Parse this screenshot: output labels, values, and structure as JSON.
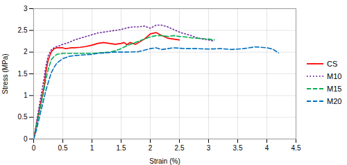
{
  "chart_data": {
    "type": "line",
    "xlabel": "Strain (%)",
    "ylabel": "Stress (MPa)",
    "xlim": [
      0,
      4.5
    ],
    "ylim": [
      0,
      3
    ],
    "xticks": [
      0,
      0.5,
      1.0,
      1.5,
      2.0,
      2.5,
      3.0,
      3.5,
      4.0,
      4.5
    ],
    "yticks": [
      0,
      0.5,
      1.0,
      1.5,
      2.0,
      2.5,
      3.0
    ],
    "grid": true,
    "legend": "right",
    "series": [
      {
        "name": "CS",
        "color": "#FF0000",
        "line_style": "solid",
        "x": [
          0,
          0.03,
          0.06,
          0.09,
          0.12,
          0.15,
          0.18,
          0.21,
          0.25,
          0.3,
          0.35,
          0.4,
          0.45,
          0.5,
          0.55,
          0.6,
          0.65,
          0.7,
          0.8,
          0.9,
          1.0,
          1.1,
          1.2,
          1.3,
          1.4,
          1.5,
          1.55,
          1.6,
          1.65,
          1.7,
          1.75,
          1.8,
          1.9,
          2.0,
          2.1,
          2.2,
          2.3,
          2.4,
          2.5
        ],
        "values": [
          0,
          0.2,
          0.42,
          0.62,
          0.82,
          1.02,
          1.22,
          1.55,
          1.82,
          2.0,
          2.08,
          2.1,
          2.1,
          2.1,
          2.08,
          2.09,
          2.1,
          2.1,
          2.11,
          2.13,
          2.16,
          2.2,
          2.22,
          2.2,
          2.18,
          2.2,
          2.22,
          2.17,
          2.22,
          2.2,
          2.18,
          2.22,
          2.3,
          2.42,
          2.45,
          2.38,
          2.32,
          2.3,
          2.28
        ]
      },
      {
        "name": "M10",
        "color": "#7030A0",
        "line_style": "dotted",
        "x": [
          0,
          0.03,
          0.06,
          0.09,
          0.12,
          0.15,
          0.18,
          0.21,
          0.25,
          0.3,
          0.35,
          0.4,
          0.45,
          0.5,
          0.6,
          0.7,
          0.8,
          0.9,
          1.0,
          1.1,
          1.2,
          1.3,
          1.4,
          1.5,
          1.6,
          1.7,
          1.8,
          1.9,
          2.0,
          2.1,
          2.2,
          2.3,
          2.4,
          2.5,
          2.6,
          2.7,
          2.8,
          2.9,
          3.0,
          3.1
        ],
        "values": [
          0,
          0.22,
          0.48,
          0.72,
          0.95,
          1.18,
          1.42,
          1.68,
          1.92,
          2.05,
          2.1,
          2.13,
          2.15,
          2.18,
          2.22,
          2.28,
          2.32,
          2.36,
          2.4,
          2.44,
          2.46,
          2.48,
          2.5,
          2.52,
          2.56,
          2.58,
          2.58,
          2.6,
          2.55,
          2.62,
          2.62,
          2.58,
          2.52,
          2.46,
          2.42,
          2.38,
          2.33,
          2.3,
          2.28,
          2.25
        ]
      },
      {
        "name": "M15",
        "color": "#00B050",
        "line_style": "dashed",
        "x": [
          0,
          0.03,
          0.06,
          0.09,
          0.12,
          0.15,
          0.18,
          0.21,
          0.25,
          0.3,
          0.35,
          0.4,
          0.5,
          0.6,
          0.7,
          0.8,
          0.9,
          1.0,
          1.1,
          1.2,
          1.3,
          1.4,
          1.5,
          1.6,
          1.7,
          1.8,
          1.9,
          2.0,
          2.1,
          2.2,
          2.3,
          2.4,
          2.5,
          2.6,
          2.7,
          2.8,
          2.9,
          3.0,
          3.1
        ],
        "values": [
          0,
          0.18,
          0.38,
          0.58,
          0.75,
          0.95,
          1.15,
          1.38,
          1.6,
          1.82,
          1.9,
          1.95,
          1.97,
          1.97,
          1.97,
          1.97,
          1.97,
          1.97,
          1.98,
          1.99,
          2.0,
          2.03,
          2.08,
          2.15,
          2.2,
          2.25,
          2.3,
          2.35,
          2.38,
          2.38,
          2.36,
          2.38,
          2.36,
          2.35,
          2.33,
          2.32,
          2.31,
          2.3,
          2.28
        ]
      },
      {
        "name": "M20",
        "color": "#0070C0",
        "line_style": "dashed",
        "x": [
          0,
          0.03,
          0.06,
          0.09,
          0.12,
          0.15,
          0.18,
          0.21,
          0.25,
          0.3,
          0.35,
          0.4,
          0.5,
          0.6,
          0.7,
          0.8,
          0.9,
          1.0,
          1.1,
          1.2,
          1.4,
          1.6,
          1.8,
          2.0,
          2.1,
          2.2,
          2.4,
          2.6,
          2.8,
          3.0,
          3.2,
          3.4,
          3.6,
          3.8,
          4.0,
          4.1,
          4.2
        ],
        "values": [
          0,
          0.12,
          0.28,
          0.45,
          0.62,
          0.78,
          0.95,
          1.12,
          1.3,
          1.52,
          1.65,
          1.75,
          1.85,
          1.9,
          1.92,
          1.93,
          1.94,
          1.95,
          1.97,
          1.98,
          2.0,
          2.0,
          2.01,
          2.08,
          2.1,
          2.06,
          2.1,
          2.08,
          2.08,
          2.07,
          2.08,
          2.06,
          2.08,
          2.12,
          2.1,
          2.07,
          1.98
        ]
      }
    ]
  }
}
